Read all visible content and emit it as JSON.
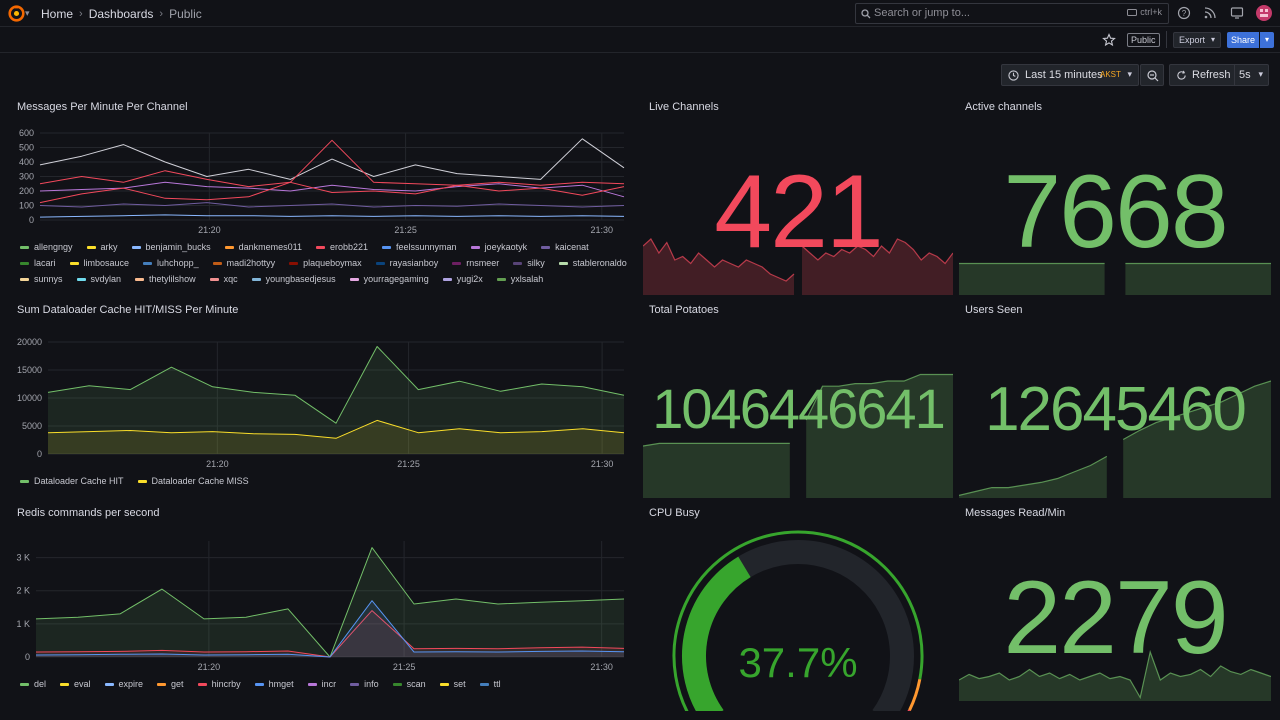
{
  "header": {
    "breadcrumbs": [
      "Home",
      "Dashboards",
      "Public"
    ],
    "search_placeholder": "Search or jump to...",
    "search_shortcut": "ctrl+k",
    "public_badge": "Public",
    "export_label": "Export",
    "share_label": "Share"
  },
  "toolbar": {
    "time_range": "Last 15 minutes",
    "timezone": "AKST",
    "refresh_label": "Refresh",
    "refresh_interval": "5s"
  },
  "colors": {
    "bg": "#111217",
    "green": "#73bf69",
    "red": "#f2495c",
    "yellow": "#fade2a",
    "blue": "#5794f2",
    "accent": "#3d71d9"
  },
  "panels": {
    "messages": {
      "title": "Messages Per Minute Per Channel",
      "yticks": [
        "600",
        "500",
        "400",
        "300",
        "200",
        "100",
        "0"
      ],
      "xticks": [
        "21:20",
        "21:25",
        "21:30"
      ],
      "legend": [
        {
          "name": "allengngy",
          "color": "#73bf69"
        },
        {
          "name": "arky",
          "color": "#fade2a"
        },
        {
          "name": "benjamin_bucks",
          "color": "#8ab8ff"
        },
        {
          "name": "dankmemes011",
          "color": "#ff9830"
        },
        {
          "name": "erobb221",
          "color": "#f2495c"
        },
        {
          "name": "feelssunnyman",
          "color": "#5794f2"
        },
        {
          "name": "joeykaotyk",
          "color": "#b877d9"
        },
        {
          "name": "kaicenat",
          "color": "#705da0"
        },
        {
          "name": "lacari",
          "color": "#37872d"
        },
        {
          "name": "limbosauce",
          "color": "#fade2a"
        },
        {
          "name": "luhchopp_",
          "color": "#447ebc"
        },
        {
          "name": "madi2hottyy",
          "color": "#c15c17"
        },
        {
          "name": "plaqueboymax",
          "color": "#890f02"
        },
        {
          "name": "rayasianboy",
          "color": "#0a437c"
        },
        {
          "name": "rnsmeer",
          "color": "#6d1f62"
        },
        {
          "name": "silky",
          "color": "#584477"
        },
        {
          "name": "stableronaldo",
          "color": "#b7dbab"
        },
        {
          "name": "sunnys",
          "color": "#f4d598"
        },
        {
          "name": "svdylan",
          "color": "#70dbed"
        },
        {
          "name": "thetylilshow",
          "color": "#f9ba8f"
        },
        {
          "name": "xqc",
          "color": "#f29191"
        },
        {
          "name": "youngbasedjesus",
          "color": "#82b5d8"
        },
        {
          "name": "yourragegaming",
          "color": "#e5a8e2"
        },
        {
          "name": "yugi2x",
          "color": "#aea2e0"
        },
        {
          "name": "yxlsalah",
          "color": "#629e51"
        }
      ]
    },
    "dataloader": {
      "title": "Sum Dataloader Cache HIT/MISS Per Minute",
      "yticks": [
        "20000",
        "15000",
        "10000",
        "5000",
        "0"
      ],
      "xticks": [
        "21:20",
        "21:25",
        "21:30"
      ],
      "legend": [
        {
          "name": "Dataloader Cache HIT",
          "color": "#73bf69"
        },
        {
          "name": "Dataloader Cache MISS",
          "color": "#fade2a"
        }
      ]
    },
    "redis": {
      "title": "Redis commands per second",
      "yticks": [
        "3 K",
        "2 K",
        "1 K",
        "0"
      ],
      "xticks": [
        "21:20",
        "21:25",
        "21:30"
      ],
      "legend": [
        {
          "name": "del",
          "color": "#73bf69"
        },
        {
          "name": "eval",
          "color": "#fade2a"
        },
        {
          "name": "expire",
          "color": "#8ab8ff"
        },
        {
          "name": "get",
          "color": "#ff9830"
        },
        {
          "name": "hincrby",
          "color": "#f2495c"
        },
        {
          "name": "hmget",
          "color": "#5794f2"
        },
        {
          "name": "incr",
          "color": "#b877d9"
        },
        {
          "name": "info",
          "color": "#705da0"
        },
        {
          "name": "scan",
          "color": "#37872d"
        },
        {
          "name": "set",
          "color": "#fade2a"
        },
        {
          "name": "ttl",
          "color": "#447ebc"
        }
      ]
    },
    "live_channels": {
      "title": "Live Channels",
      "value": "421",
      "color": "#f2495c"
    },
    "active_channels": {
      "title": "Active channels",
      "value": "7668",
      "color": "#73bf69"
    },
    "total_potatoes": {
      "title": "Total Potatoes",
      "value": "1046446641",
      "color": "#73bf69"
    },
    "users_seen": {
      "title": "Users Seen",
      "value": "12645460",
      "color": "#73bf69"
    },
    "cpu_busy": {
      "title": "CPU Busy",
      "value": "37.7%",
      "percent": 37.7,
      "color": "#37a52d"
    },
    "messages_read": {
      "title": "Messages Read/Min",
      "value": "2279",
      "color": "#73bf69"
    }
  },
  "chart_data": [
    {
      "type": "line",
      "title": "Messages Per Minute Per Channel",
      "ylim": [
        0,
        600
      ],
      "x": [
        "21:17",
        "21:18",
        "21:19",
        "21:20",
        "21:21",
        "21:22",
        "21:23",
        "21:24",
        "21:25",
        "21:26",
        "21:27",
        "21:28",
        "21:29",
        "21:30",
        "21:31"
      ],
      "series": [
        {
          "name": "allengngy",
          "values": [
            380,
            440,
            520,
            400,
            300,
            350,
            280,
            420,
            300,
            380,
            320,
            300,
            280,
            560,
            360
          ]
        },
        {
          "name": "arky",
          "values": [
            250,
            300,
            260,
            340,
            280,
            230,
            260,
            550,
            260,
            250,
            240,
            260,
            240,
            260,
            250
          ]
        },
        {
          "name": "benjamin_bucks",
          "values": [
            200,
            210,
            220,
            260,
            230,
            220,
            200,
            240,
            210,
            200,
            230,
            250,
            220,
            240,
            160
          ]
        },
        {
          "name": "erobb221",
          "values": [
            120,
            180,
            220,
            150,
            140,
            160,
            260,
            190,
            200,
            180,
            240,
            200,
            220,
            170,
            230
          ]
        },
        {
          "name": "feelssunnyman",
          "values": [
            20,
            25,
            30,
            35,
            30,
            30,
            25,
            30,
            25,
            30,
            25,
            30,
            25,
            30,
            25
          ]
        },
        {
          "name": "kaicenat",
          "values": [
            100,
            90,
            110,
            100,
            120,
            90,
            100,
            110,
            90,
            100,
            95,
            110,
            100,
            90,
            100
          ]
        }
      ]
    },
    {
      "type": "area",
      "title": "Sum Dataloader Cache HIT/MISS Per Minute",
      "ylim": [
        0,
        20000
      ],
      "x": [
        "21:17",
        "21:18",
        "21:19",
        "21:20",
        "21:21",
        "21:22",
        "21:23",
        "21:24",
        "21:25",
        "21:26",
        "21:27",
        "21:28",
        "21:29",
        "21:30",
        "21:31"
      ],
      "series": [
        {
          "name": "Dataloader Cache HIT",
          "values": [
            11000,
            12200,
            11500,
            15500,
            12000,
            11000,
            10500,
            5500,
            19200,
            11500,
            13000,
            11200,
            12500,
            12000,
            10500
          ]
        },
        {
          "name": "Dataloader Cache MISS",
          "values": [
            3800,
            4000,
            4200,
            3800,
            4000,
            3600,
            3500,
            2800,
            6000,
            3800,
            4500,
            3800,
            4000,
            4500,
            3800
          ]
        }
      ]
    },
    {
      "type": "area",
      "title": "Redis commands per second",
      "ylim": [
        0,
        3500
      ],
      "x": [
        "21:17",
        "21:18",
        "21:19",
        "21:20",
        "21:21",
        "21:22",
        "21:23",
        "21:24",
        "21:25",
        "21:26",
        "21:27",
        "21:28",
        "21:29",
        "21:30",
        "21:31"
      ],
      "series": [
        {
          "name": "del",
          "values": [
            1150,
            1200,
            1300,
            2050,
            1150,
            1200,
            1450,
            0,
            3300,
            1600,
            1750,
            1600,
            1650,
            1700,
            1750
          ]
        },
        {
          "name": "hincrby",
          "values": [
            150,
            160,
            170,
            200,
            150,
            160,
            180,
            0,
            1400,
            250,
            260,
            250,
            280,
            300,
            260
          ]
        },
        {
          "name": "hmget",
          "values": [
            60,
            70,
            80,
            90,
            60,
            70,
            80,
            0,
            1700,
            150,
            160,
            150,
            170,
            180,
            160
          ]
        }
      ]
    }
  ]
}
